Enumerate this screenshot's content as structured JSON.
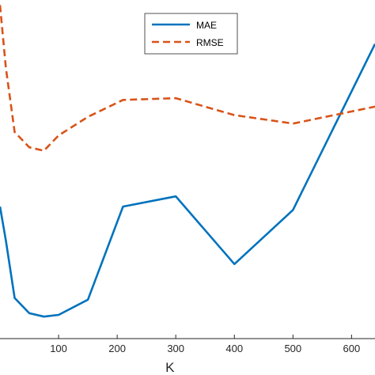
{
  "chart_data": {
    "type": "line",
    "xlabel": "K",
    "ylabel": "",
    "title": "",
    "xlim": [
      0,
      640
    ],
    "ylim": [
      0,
      1
    ],
    "x_ticks": [
      100,
      200,
      300,
      400,
      500,
      600
    ],
    "x_tick_labels": [
      "100",
      "200",
      "300",
      "400",
      "500",
      "600"
    ],
    "grid": false,
    "legend_position": "top-center",
    "series": [
      {
        "name": "MAE",
        "color": "#0072BD",
        "dash": "solid",
        "x": [
          0,
          10,
          25,
          50,
          75,
          100,
          150,
          210,
          300,
          400,
          500,
          640
        ],
        "y": [
          0.39,
          0.29,
          0.12,
          0.075,
          0.065,
          0.07,
          0.115,
          0.39,
          0.42,
          0.22,
          0.38,
          0.87
        ]
      },
      {
        "name": "RMSE",
        "color": "#D95319",
        "dash": "dashed",
        "x": [
          0,
          10,
          25,
          50,
          75,
          100,
          150,
          210,
          300,
          400,
          500,
          640
        ],
        "y": [
          0.985,
          0.8,
          0.61,
          0.565,
          0.555,
          0.6,
          0.655,
          0.705,
          0.71,
          0.66,
          0.635,
          0.685
        ]
      }
    ]
  }
}
